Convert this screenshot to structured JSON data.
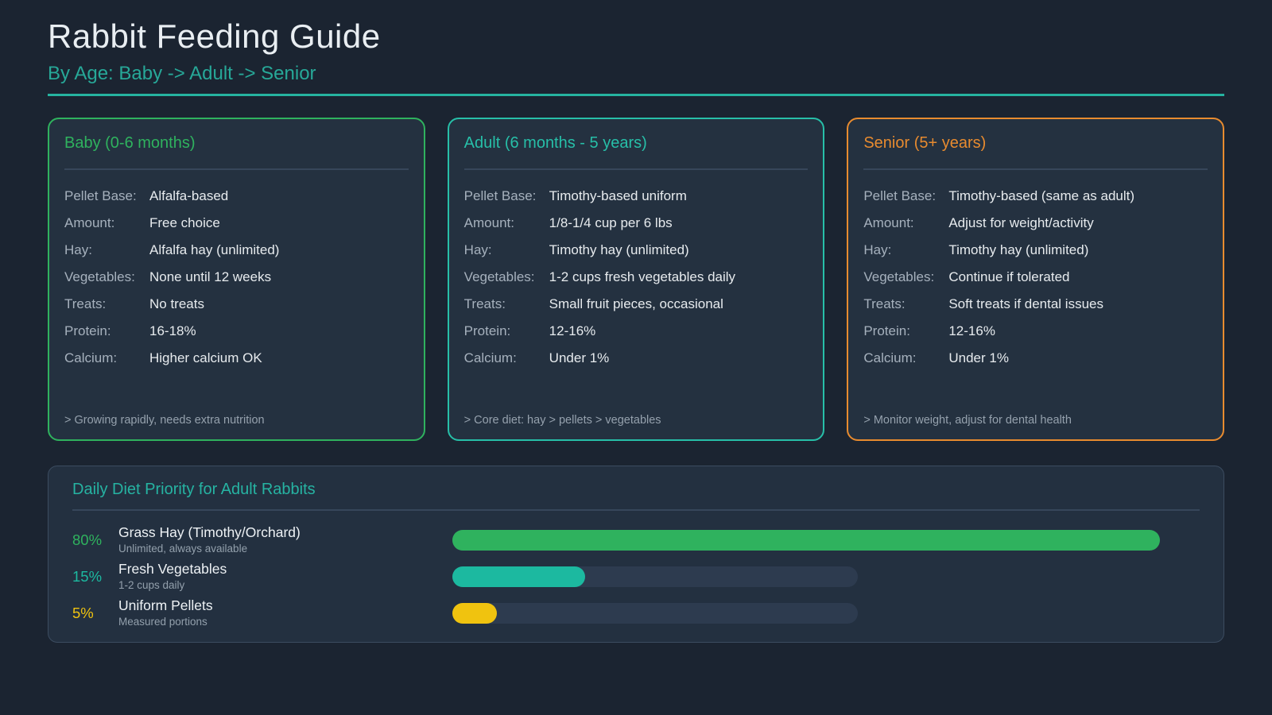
{
  "header": {
    "title": "Rabbit Feeding Guide",
    "subtitle": "By Age: Baby -> Adult -> Senior",
    "accent_color": "#26b3a0"
  },
  "cards": [
    {
      "title": "Baby (0-6 months)",
      "accent": "#2fb25e",
      "rows": [
        {
          "label": "Pellet Base:",
          "value": "Alfalfa-based"
        },
        {
          "label": "Amount:",
          "value": "Free choice"
        },
        {
          "label": "Hay:",
          "value": "Alfalfa hay (unlimited)"
        },
        {
          "label": "Vegetables:",
          "value": "None until 12 weeks"
        },
        {
          "label": "Treats:",
          "value": "No treats"
        },
        {
          "label": "Protein:",
          "value": "16-18%"
        },
        {
          "label": "Calcium:",
          "value": "Higher calcium OK"
        }
      ],
      "note": "> Growing rapidly, needs extra nutrition"
    },
    {
      "title": "Adult (6 months - 5 years)",
      "accent": "#27bfa8",
      "rows": [
        {
          "label": "Pellet Base:",
          "value": "Timothy-based uniform"
        },
        {
          "label": "Amount:",
          "value": "1/8-1/4 cup per 6 lbs"
        },
        {
          "label": "Hay:",
          "value": "Timothy hay (unlimited)"
        },
        {
          "label": "Vegetables:",
          "value": "1-2 cups fresh vegetables daily"
        },
        {
          "label": "Treats:",
          "value": "Small fruit pieces, occasional"
        },
        {
          "label": "Protein:",
          "value": "12-16%"
        },
        {
          "label": "Calcium:",
          "value": "Under 1%"
        }
      ],
      "note": "> Core diet: hay > pellets > vegetables"
    },
    {
      "title": "Senior (5+ years)",
      "accent": "#e88b2f",
      "rows": [
        {
          "label": "Pellet Base:",
          "value": "Timothy-based (same as adult)"
        },
        {
          "label": "Amount:",
          "value": "Adjust for weight/activity"
        },
        {
          "label": "Hay:",
          "value": "Timothy hay (unlimited)"
        },
        {
          "label": "Vegetables:",
          "value": "Continue if tolerated"
        },
        {
          "label": "Treats:",
          "value": "Soft treats if dental issues"
        },
        {
          "label": "Protein:",
          "value": "12-16%"
        },
        {
          "label": "Calcium:",
          "value": "Under 1%"
        }
      ],
      "note": "> Monitor weight, adjust for dental health"
    }
  ],
  "chart_data": {
    "type": "bar",
    "orientation": "horizontal",
    "title": "Daily Diet Priority for Adult Rabbits",
    "categories": [
      "Grass Hay (Timothy/Orchard)",
      "Fresh Vegetables",
      "Uniform Pellets"
    ],
    "values": [
      80,
      15,
      5
    ],
    "value_labels": [
      "80%",
      "15%",
      "5%"
    ],
    "sublabels": [
      "Unlimited, always available",
      "1-2 cups daily",
      "Measured portions"
    ],
    "colors": [
      "#2fb25e",
      "#1cb9a0",
      "#f0c30f"
    ],
    "xlim": [
      0,
      100
    ],
    "grid": false,
    "legend": false
  }
}
